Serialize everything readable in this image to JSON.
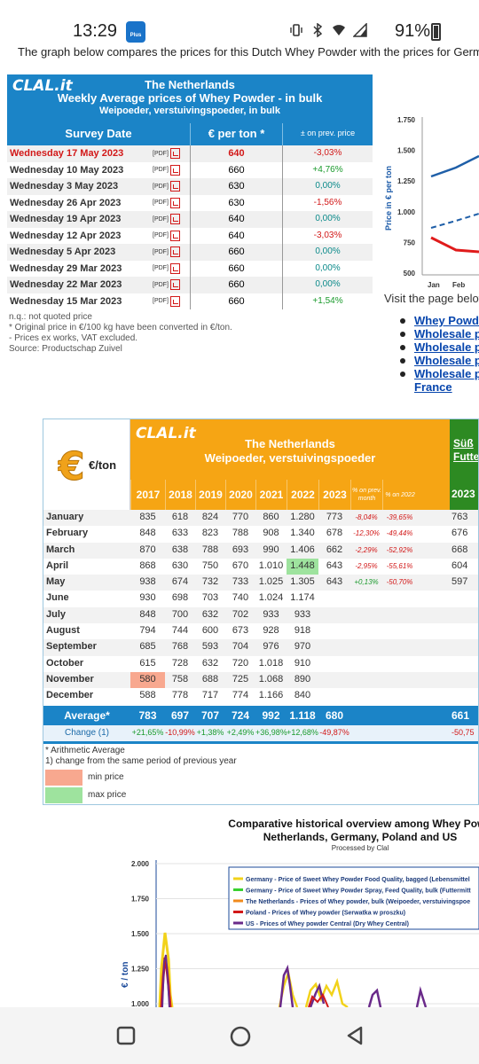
{
  "status_bar": {
    "time": "13:29",
    "app_badge": "Plus",
    "battery": "91%"
  },
  "intro_text": "The graph below compares the prices for this Dutch Whey Powder with the prices for German",
  "weekly": {
    "logo": "CLAL.it",
    "title": "The Netherlands",
    "subtitle": "Weekly Average prices of Whey Powder - in bulk",
    "subtitle2": "Weipoeder, verstuivingspoeder, in bulk",
    "col_date": "Survey Date",
    "col_price": "€ per ton *",
    "col_change": "± on prev. price",
    "pdf_label": "[PDF]",
    "rows": [
      {
        "date": "Wednesday 17 May 2023",
        "price": "640",
        "change": "-3,03%",
        "cls": "red"
      },
      {
        "date": "Wednesday 10 May 2023",
        "price": "660",
        "change": "+4,76%",
        "cls": "green"
      },
      {
        "date": "Wednesday 3 May 2023",
        "price": "630",
        "change": "0,00%",
        "cls": "teal"
      },
      {
        "date": "Wednesday 26 Apr 2023",
        "price": "630",
        "change": "-1,56%",
        "cls": "red"
      },
      {
        "date": "Wednesday 19 Apr 2023",
        "price": "640",
        "change": "0,00%",
        "cls": "teal"
      },
      {
        "date": "Wednesday 12 Apr 2023",
        "price": "640",
        "change": "-3,03%",
        "cls": "red"
      },
      {
        "date": "Wednesday 5 Apr 2023",
        "price": "660",
        "change": "0,00%",
        "cls": "teal"
      },
      {
        "date": "Wednesday 29 Mar 2023",
        "price": "660",
        "change": "0,00%",
        "cls": "teal"
      },
      {
        "date": "Wednesday 22 Mar 2023",
        "price": "660",
        "change": "0,00%",
        "cls": "teal"
      },
      {
        "date": "Wednesday 15 Mar 2023",
        "price": "660",
        "change": "+1,54%",
        "cls": "green"
      }
    ],
    "notes": [
      "n.q.: not quoted price",
      "* Original price in €/100 kg have been converted in €/ton.",
      "- Prices ex works, VAT excluded.",
      "Source: Productschap Zuivel"
    ]
  },
  "mini_chart": {
    "ylabel": "Price in € per ton",
    "yticks": [
      "1.750",
      "1.500",
      "1.250",
      "1.000",
      "750",
      "500"
    ],
    "xticks": [
      "Jan",
      "Feb"
    ],
    "colors": {
      "blue": "#1f5fa8",
      "red": "#e01b1b"
    }
  },
  "visit_text": "Visit the page below",
  "links": [
    "Whey Powde",
    "Wholesale p",
    "Wholesale p",
    "Wholesale p",
    "Wholesale p"
  ],
  "links_extra": "France",
  "monthly": {
    "logo": "CLAL.it",
    "unit": "€/ton",
    "title": "The Netherlands",
    "subtitle": "Weipoeder, verstuivingspoeder",
    "side_title": "Süß Futte",
    "side_year": "2023",
    "years": [
      "2017",
      "2018",
      "2019",
      "2020",
      "2021",
      "2022",
      "2023"
    ],
    "pct_prev_month": "% on prev. month",
    "pct_2022": "% on 2022",
    "rows": [
      {
        "m": "January",
        "v": [
          "835",
          "618",
          "824",
          "770",
          "860",
          "1.280",
          "773"
        ],
        "pm": "-8,04%",
        "py": "-39,65%",
        "s": "763"
      },
      {
        "m": "February",
        "v": [
          "848",
          "633",
          "823",
          "788",
          "908",
          "1.340",
          "678"
        ],
        "pm": "-12,30%",
        "py": "-49,44%",
        "s": "676"
      },
      {
        "m": "March",
        "v": [
          "870",
          "638",
          "788",
          "693",
          "990",
          "1.406",
          "662"
        ],
        "pm": "-2,29%",
        "py": "-52,92%",
        "s": "668"
      },
      {
        "m": "April",
        "v": [
          "868",
          "630",
          "750",
          "670",
          "1.010",
          "1.448",
          "643"
        ],
        "pm": "-2,95%",
        "py": "-55,61%",
        "s": "604"
      },
      {
        "m": "May",
        "v": [
          "938",
          "674",
          "732",
          "733",
          "1.025",
          "1.305",
          "643"
        ],
        "pm": "+0,13%",
        "py": "-50,70%",
        "s": "597"
      },
      {
        "m": "June",
        "v": [
          "930",
          "698",
          "703",
          "740",
          "1.024",
          "1.174",
          ""
        ],
        "pm": "",
        "py": "",
        "s": ""
      },
      {
        "m": "July",
        "v": [
          "848",
          "700",
          "632",
          "702",
          "933",
          "933",
          ""
        ],
        "pm": "",
        "py": "",
        "s": ""
      },
      {
        "m": "August",
        "v": [
          "794",
          "744",
          "600",
          "673",
          "928",
          "918",
          ""
        ],
        "pm": "",
        "py": "",
        "s": ""
      },
      {
        "m": "September",
        "v": [
          "685",
          "768",
          "593",
          "704",
          "976",
          "970",
          ""
        ],
        "pm": "",
        "py": "",
        "s": ""
      },
      {
        "m": "October",
        "v": [
          "615",
          "728",
          "632",
          "720",
          "1.018",
          "910",
          ""
        ],
        "pm": "",
        "py": "",
        "s": ""
      },
      {
        "m": "November",
        "v": [
          "580",
          "758",
          "688",
          "725",
          "1.068",
          "890",
          ""
        ],
        "pm": "",
        "py": "",
        "s": ""
      },
      {
        "m": "December",
        "v": [
          "588",
          "778",
          "717",
          "774",
          "1.166",
          "840",
          ""
        ],
        "pm": "",
        "py": "",
        "s": ""
      }
    ],
    "average_label": "Average*",
    "averages": [
      "783",
      "697",
      "707",
      "724",
      "992",
      "1.118",
      "680"
    ],
    "average_side": "661",
    "change_label": "Change (1)",
    "changes": [
      "+21,65%",
      "-10,99%",
      "+1,38%",
      "+2,49%",
      "+36,98%",
      "+12,68%",
      "-49,87%"
    ],
    "change_side": "-50,75",
    "notes": [
      "* Arithmetic Average",
      "1) change from the same period of previous year"
    ],
    "legend_min": "min price",
    "legend_max": "max price",
    "min_color": "#f8a88f",
    "max_color": "#9ee39e"
  },
  "historical": {
    "title_line1": "Comparative historical overview among Whey Powd",
    "title_line2": "Netherlands, Germany, Poland and US",
    "processed": "Processed by Clal",
    "ylabel": "€ / ton",
    "yticks": [
      "2.000",
      "1.750",
      "1.500",
      "1.250",
      "1.000"
    ],
    "legend": [
      {
        "label": "Germany - Price of Sweet Whey Powder Food Quality, bagged (Lebensmittel",
        "color": "#f2d21a"
      },
      {
        "label": "Germany - Price of Sweet Whey Powder Spray, Feed Quality, bulk (Futtermitt",
        "color": "#39d12f"
      },
      {
        "label": "The Netherlands - Prices of Whey powder, bulk (Weipoeder, verstuivingspoe",
        "color": "#f08a1c"
      },
      {
        "label": "Poland - Prices of Whey powder (Serwatka w proszku)",
        "color": "#d21818"
      },
      {
        "label": "US - Prices of Whey powder Central (Dry Whey Central)",
        "color": "#6a2a8a"
      }
    ]
  },
  "nav": {
    "recent": "recent-apps",
    "home": "home",
    "back": "back"
  }
}
